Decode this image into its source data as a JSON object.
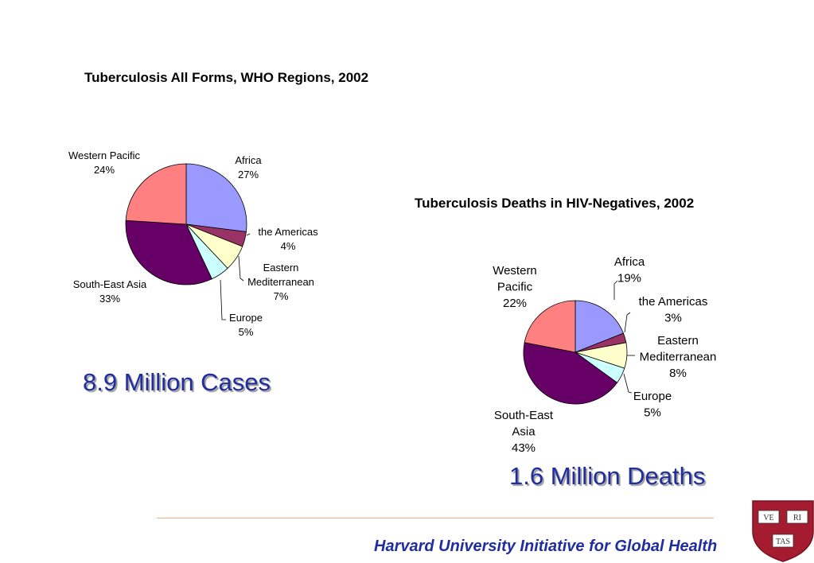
{
  "chart_data": [
    {
      "type": "pie",
      "title": "Tuberculosis All Forms, WHO Regions, 2002",
      "slices": [
        {
          "label": "Africa",
          "value": 27,
          "value_label": "27%",
          "color": "#9999ff"
        },
        {
          "label": "the Americas",
          "value": 4,
          "value_label": "4%",
          "color": "#993366"
        },
        {
          "label": "Eastern Mediterranean",
          "value": 7,
          "value_label": "7%",
          "color": "#ffffcc"
        },
        {
          "label": "Europe",
          "value": 5,
          "value_label": "5%",
          "color": "#ccffff"
        },
        {
          "label": "South-East Asia",
          "value": 33,
          "value_label": "33%",
          "color": "#660066"
        },
        {
          "label": "Western Pacific",
          "value": 24,
          "value_label": "24%",
          "color": "#ff8080"
        }
      ],
      "summary": "8.9 Million Cases"
    },
    {
      "type": "pie",
      "title": "Tuberculosis Deaths in HIV-Negatives, 2002",
      "slices": [
        {
          "label": "Africa",
          "value": 19,
          "value_label": "19%",
          "color": "#9999ff"
        },
        {
          "label": "the Americas",
          "value": 3,
          "value_label": "3%",
          "color": "#993366"
        },
        {
          "label": "Eastern Mediterranean",
          "value": 8,
          "value_label": "8%",
          "color": "#ffffcc"
        },
        {
          "label": "Europe",
          "value": 5,
          "value_label": "5%",
          "color": "#ccffff"
        },
        {
          "label": "South-East Asia",
          "value": 43,
          "value_label": "43%",
          "color": "#660066"
        },
        {
          "label": "Western Pacific",
          "value": 22,
          "value_label": "22%",
          "color": "#ff8080"
        }
      ],
      "summary": "1.6 Million Deaths"
    }
  ],
  "footer": {
    "text": "Harvard University Initiative for Global Health",
    "shield_letters": [
      "VE",
      "RI",
      "TAS"
    ],
    "rule_color": "#f2b183",
    "text_color": "#1f2d9e"
  }
}
